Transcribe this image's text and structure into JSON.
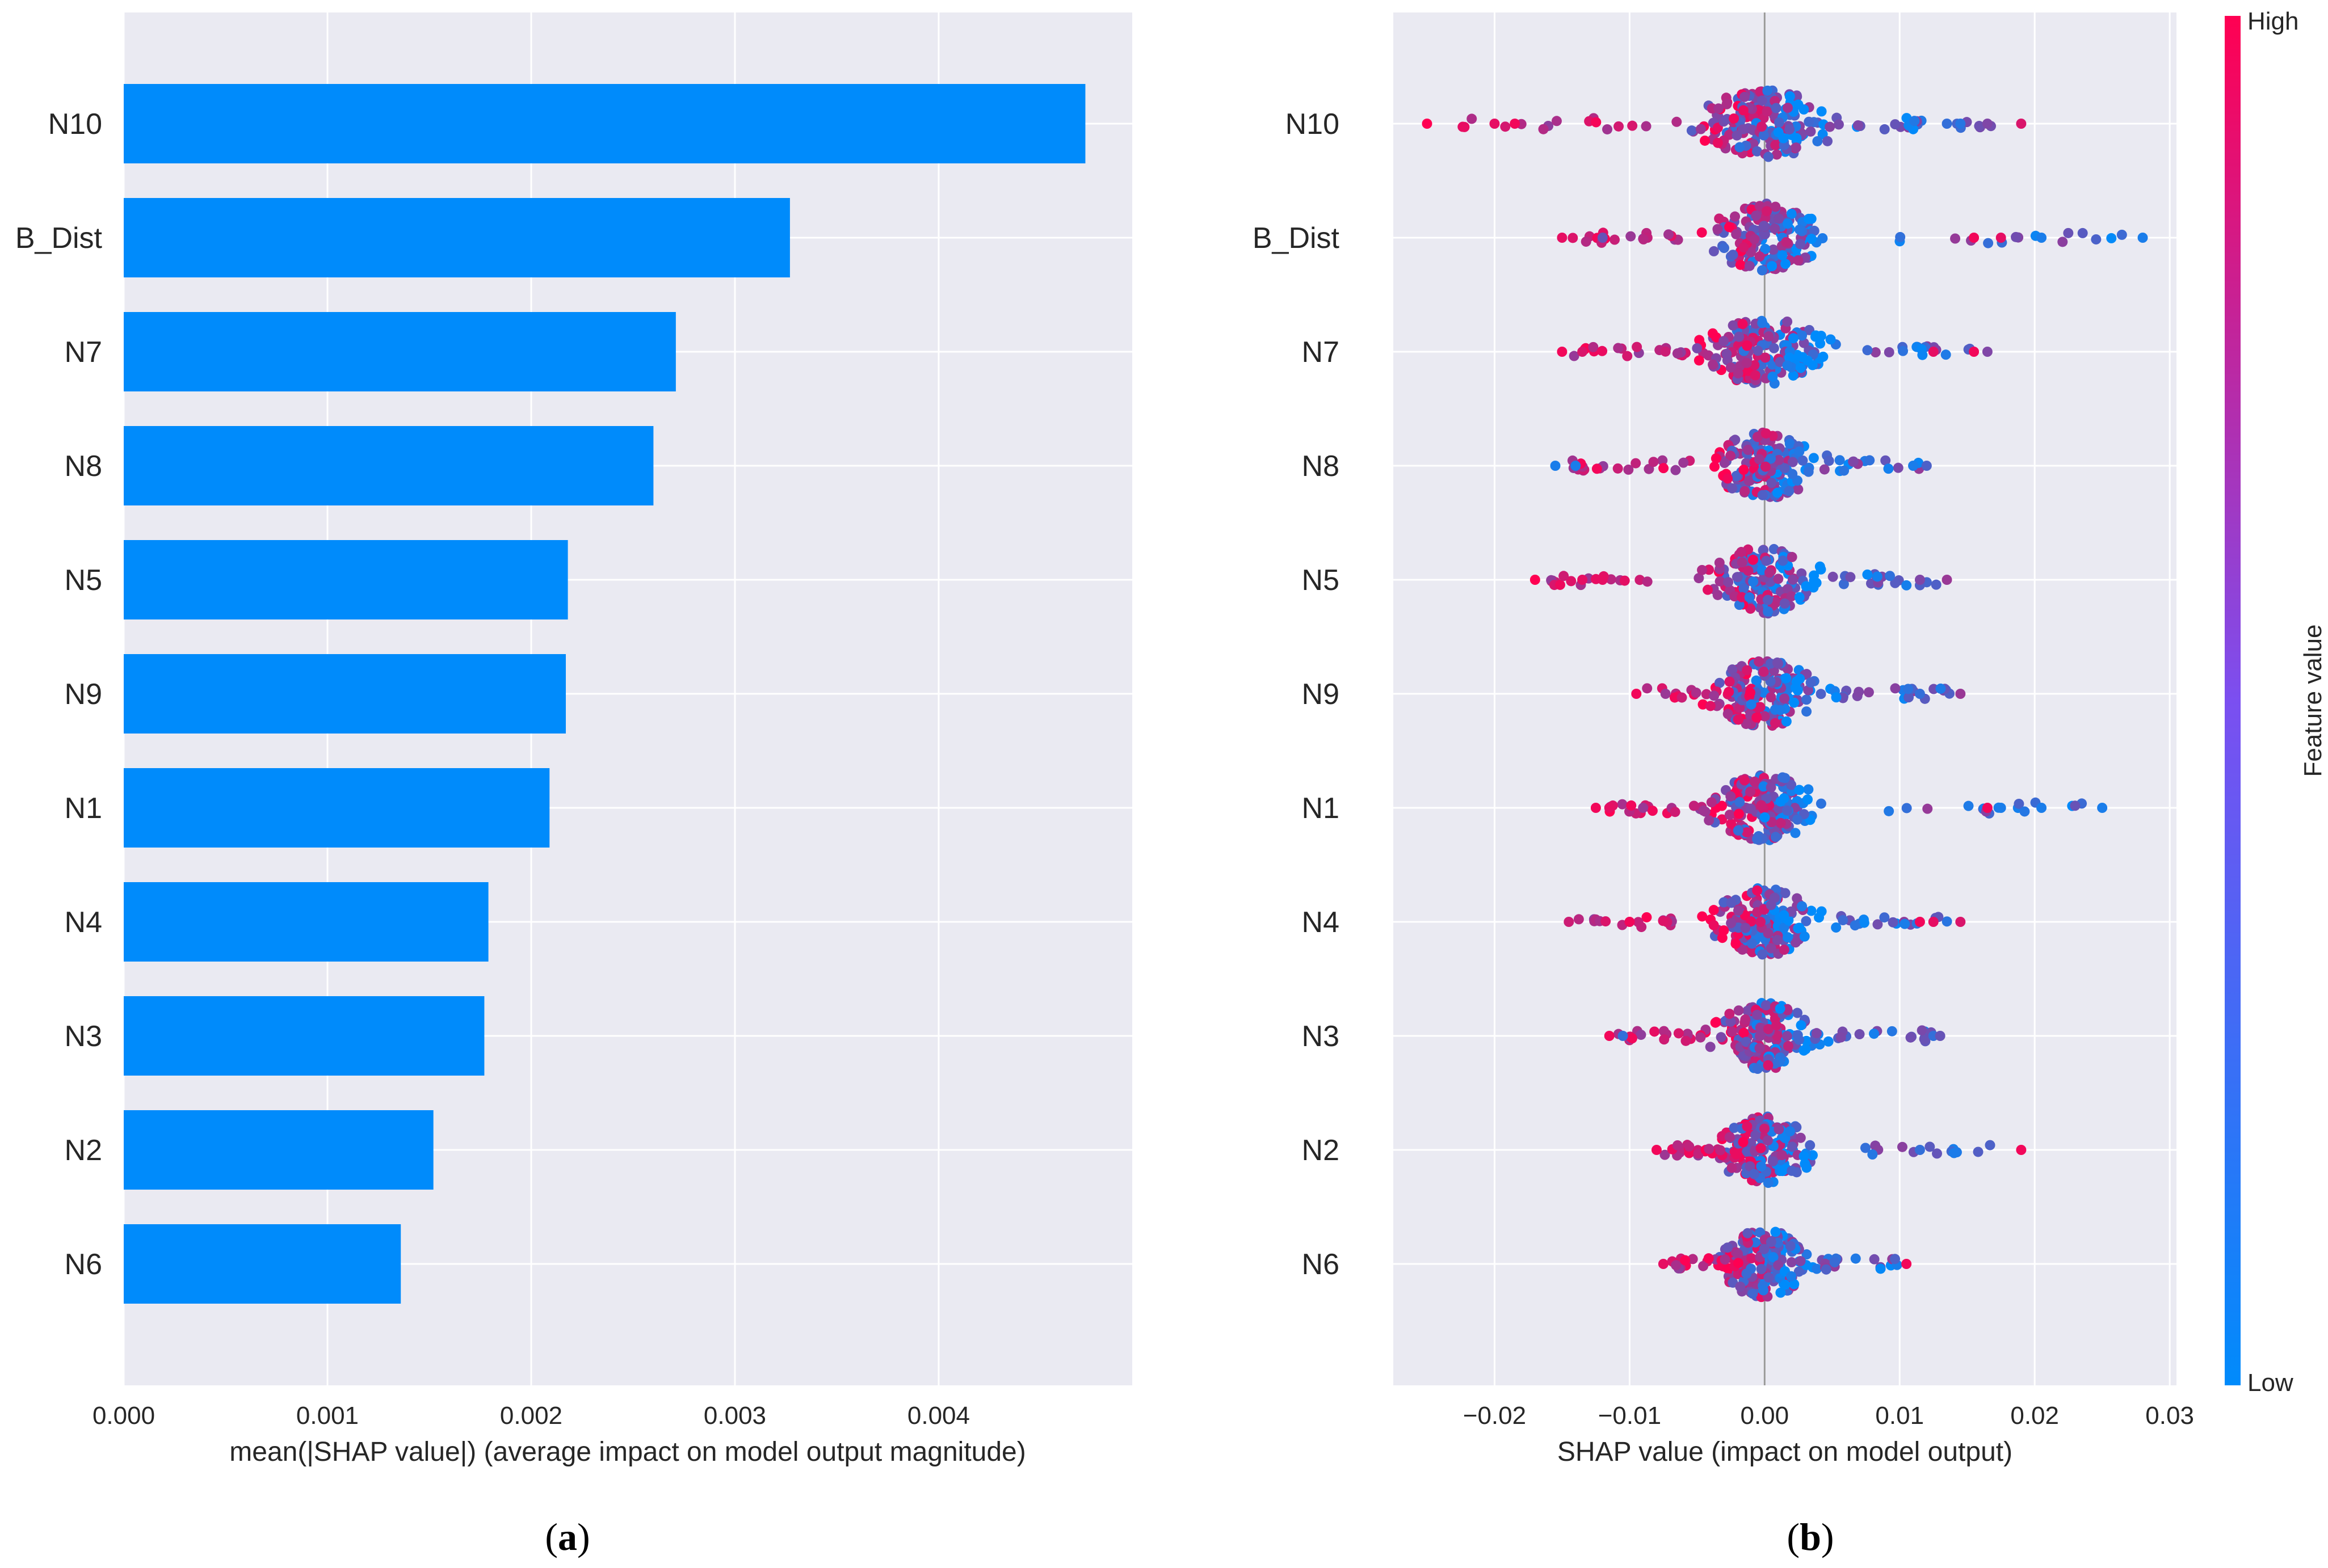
{
  "panels": [
    {
      "caption_open": "(",
      "caption_letter": "a",
      "caption_close": ")"
    },
    {
      "caption_open": "(",
      "caption_letter": "b",
      "caption_close": ")"
    }
  ],
  "colors": {
    "plot_bg": "#eaeaf2",
    "grid": "#ffffff",
    "bar": "#008bfb",
    "low": "#008bfb",
    "high": "#ff0052",
    "text": "#262626"
  },
  "chart_data": [
    {
      "type": "bar",
      "orientation": "horizontal",
      "categories": [
        "N10",
        "B_Dist",
        "N7",
        "N8",
        "N5",
        "N9",
        "N1",
        "N4",
        "N3",
        "N2",
        "N6"
      ],
      "values": [
        0.00472,
        0.00327,
        0.00271,
        0.0026,
        0.00218,
        0.00217,
        0.00209,
        0.00179,
        0.00177,
        0.00152,
        0.00136
      ],
      "xlabel": "mean(|SHAP value|) (average impact on model output magnitude)",
      "xlim": [
        0,
        0.00495
      ],
      "xticks": [
        0,
        0.001,
        0.002,
        0.003,
        0.004
      ],
      "xtick_labels": [
        "0.000",
        "0.001",
        "0.002",
        "0.003",
        "0.004"
      ],
      "grid": true
    },
    {
      "type": "scatter",
      "subtype": "beeswarm",
      "categories": [
        "N10",
        "B_Dist",
        "N7",
        "N8",
        "N5",
        "N9",
        "N1",
        "N4",
        "N3",
        "N2",
        "N6"
      ],
      "xlabel": "SHAP value (impact on model output)",
      "xlim": [
        -0.0275,
        0.0305
      ],
      "xticks": [
        -0.02,
        -0.01,
        0,
        0.01,
        0.02,
        0.03
      ],
      "xtick_labels": [
        "−0.02",
        "−0.01",
        "0.00",
        "0.01",
        "0.02",
        "0.03"
      ],
      "colorbar": {
        "label": "Feature value",
        "high_label": "High",
        "low_label": "Low"
      },
      "series": [
        {
          "feature": "N10",
          "min": -0.025,
          "max": 0.019,
          "spread": 0.0042,
          "outliers": [
            [
              -0.025,
              1.0
            ],
            [
              -0.02,
              0.9
            ],
            [
              -0.0185,
              0.95
            ],
            [
              0.0135,
              0.2
            ],
            [
              0.0145,
              0.15
            ],
            [
              0.019,
              0.85
            ],
            [
              0.0165,
              0.5
            ]
          ]
        },
        {
          "feature": "B_Dist",
          "min": -0.015,
          "max": 0.028,
          "spread": 0.0032,
          "outliers": [
            [
              -0.015,
              0.9
            ],
            [
              -0.012,
              0.4
            ],
            [
              0.0155,
              0.95
            ],
            [
              0.0175,
              0.9
            ],
            [
              0.0205,
              0.1
            ],
            [
              0.028,
              0.1
            ]
          ]
        },
        {
          "feature": "N7",
          "min": -0.015,
          "max": 0.0165,
          "spread": 0.0035,
          "outliers": [
            [
              -0.015,
              0.95
            ],
            [
              -0.0135,
              0.85
            ],
            [
              0.0125,
              0.9
            ],
            [
              0.0155,
              0.95
            ],
            [
              0.0165,
              0.5
            ]
          ]
        },
        {
          "feature": "N8",
          "min": -0.0155,
          "max": 0.0125,
          "spread": 0.003,
          "outliers": [
            [
              -0.0155,
              0.1
            ],
            [
              -0.014,
              0.1
            ],
            [
              0.011,
              0.1
            ],
            [
              0.012,
              0.3
            ]
          ]
        },
        {
          "feature": "N5",
          "min": -0.017,
          "max": 0.0135,
          "spread": 0.0032,
          "outliers": [
            [
              -0.017,
              1.0
            ],
            [
              -0.0135,
              0.9
            ],
            [
              -0.012,
              0.9
            ],
            [
              0.0115,
              0.5
            ],
            [
              0.0135,
              0.6
            ]
          ]
        },
        {
          "feature": "N9",
          "min": -0.0095,
          "max": 0.0145,
          "spread": 0.003,
          "outliers": [
            [
              -0.0095,
              0.95
            ],
            [
              0.0115,
              0.2
            ],
            [
              0.0145,
              0.6
            ]
          ]
        },
        {
          "feature": "N1",
          "min": -0.0125,
          "max": 0.025,
          "spread": 0.003,
          "outliers": [
            [
              -0.0125,
              0.95
            ],
            [
              -0.0115,
              0.9
            ],
            [
              -0.009,
              0.6
            ],
            [
              0.0165,
              0.95
            ],
            [
              0.0175,
              0.1
            ],
            [
              0.0205,
              0.1
            ],
            [
              0.025,
              0.1
            ]
          ]
        },
        {
          "feature": "N4",
          "min": -0.0145,
          "max": 0.0145,
          "spread": 0.003,
          "outliers": [
            [
              -0.0145,
              0.8
            ],
            [
              -0.01,
              0.95
            ],
            [
              0.0115,
              0.95
            ],
            [
              0.0125,
              0.9
            ],
            [
              0.0145,
              0.85
            ]
          ]
        },
        {
          "feature": "N3",
          "min": -0.0115,
          "max": 0.013,
          "spread": 0.0028,
          "outliers": [
            [
              -0.0115,
              0.95
            ],
            [
              -0.0105,
              0.2
            ],
            [
              0.0125,
              0.2
            ],
            [
              0.013,
              0.4
            ]
          ]
        },
        {
          "feature": "N2",
          "min": -0.008,
          "max": 0.019,
          "spread": 0.0028,
          "outliers": [
            [
              -0.008,
              0.95
            ],
            [
              0.0115,
              0.2
            ],
            [
              0.019,
              0.95
            ]
          ]
        },
        {
          "feature": "N6",
          "min": -0.0075,
          "max": 0.0105,
          "spread": 0.0028,
          "outliers": [
            [
              -0.0075,
              0.9
            ],
            [
              0.0105,
              0.95
            ]
          ]
        }
      ]
    }
  ]
}
